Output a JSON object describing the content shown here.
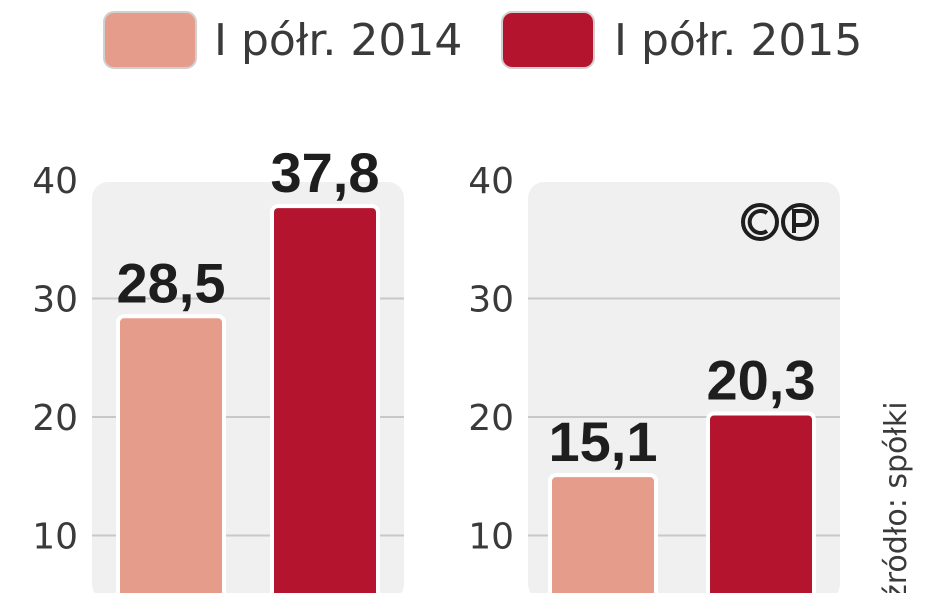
{
  "legend": [
    {
      "label": "I półr. 2014",
      "color": "#e59c8a"
    },
    {
      "label": "I półr. 2015",
      "color": "#b5142f"
    }
  ],
  "copyright_logo": "CP",
  "source": "źródło: spółki",
  "colors": {
    "panel_bg": "#f0f0f0",
    "grid": "#c8c8c8",
    "bar_outline": "#ffffff"
  },
  "chart_data": [
    {
      "type": "bar",
      "categories": [
        "I półr. 2014",
        "I półr. 2015"
      ],
      "values": [
        28.5,
        37.8
      ],
      "value_labels": [
        "28,5",
        "37,8"
      ],
      "y_ticks": [
        "10",
        "20",
        "30",
        "40"
      ],
      "ylim": [
        0,
        40
      ],
      "grid": true,
      "legend_position": "top"
    },
    {
      "type": "bar",
      "categories": [
        "I półr. 2014",
        "I półr. 2015"
      ],
      "values": [
        15.1,
        20.3
      ],
      "value_labels": [
        "15,1",
        "20,3"
      ],
      "y_ticks": [
        "10",
        "20",
        "30",
        "40"
      ],
      "ylim": [
        0,
        40
      ],
      "grid": true,
      "legend_position": "top"
    }
  ]
}
